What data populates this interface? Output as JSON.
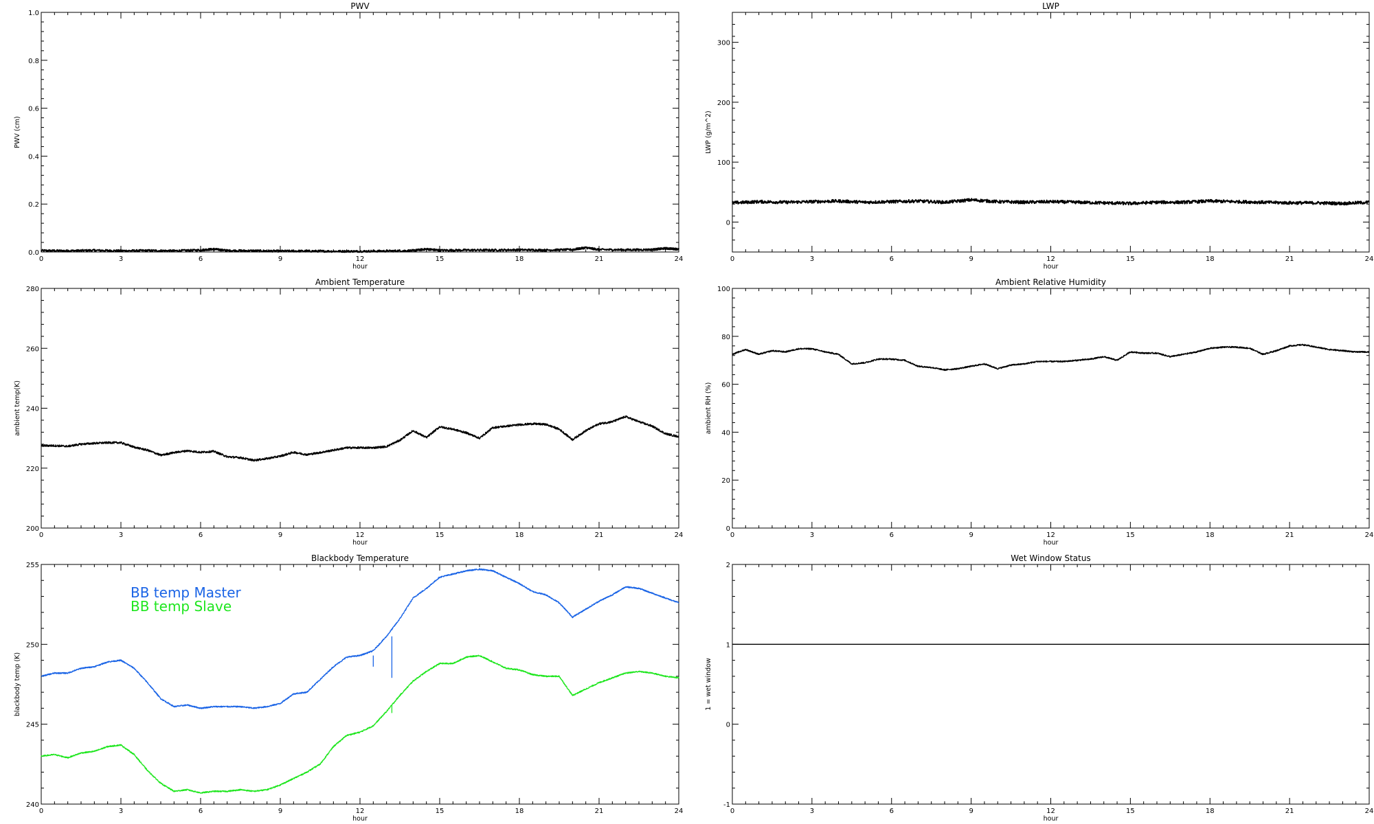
{
  "chart_data": [
    {
      "type": "line",
      "title": "PWV",
      "xlabel": "hour",
      "ylabel": "PWV (cm)",
      "xlim": [
        0,
        24
      ],
      "ylim": [
        0,
        1.0
      ],
      "x_ticks": [
        0,
        3,
        6,
        9,
        12,
        15,
        18,
        21,
        24
      ],
      "y_ticks": [
        0.0,
        0.2,
        0.4,
        0.6,
        0.8,
        1.0
      ],
      "y_tick_labels": [
        "0.0",
        "0.2",
        "0.4",
        "0.6",
        "0.8",
        "1.0"
      ],
      "series": [
        {
          "color": "#000000",
          "noise": 0.004,
          "x": [
            0,
            1,
            2,
            3,
            4,
            5,
            6,
            6.5,
            7,
            8,
            9,
            10,
            11,
            12,
            13,
            14,
            14.5,
            15,
            16,
            17,
            18,
            19,
            20,
            20.5,
            21,
            22,
            23,
            23.5,
            24
          ],
          "y": [
            0.006,
            0.005,
            0.007,
            0.005,
            0.006,
            0.005,
            0.008,
            0.012,
            0.006,
            0.005,
            0.004,
            0.004,
            0.003,
            0.003,
            0.004,
            0.006,
            0.012,
            0.007,
            0.008,
            0.008,
            0.009,
            0.008,
            0.01,
            0.018,
            0.01,
            0.009,
            0.01,
            0.015,
            0.012
          ]
        }
      ]
    },
    {
      "type": "line",
      "title": "LWP",
      "xlabel": "hour",
      "ylabel": "LWP (g/m^2)",
      "xlim": [
        0,
        24
      ],
      "ylim": [
        -50,
        350
      ],
      "x_ticks": [
        0,
        3,
        6,
        9,
        12,
        15,
        18,
        21,
        24
      ],
      "y_ticks": [
        0,
        100,
        200,
        300
      ],
      "y_tick_labels": [
        "0",
        "100",
        "200",
        "300"
      ],
      "series": [
        {
          "color": "#000000",
          "noise": 2.5,
          "x": [
            0,
            1,
            2,
            3,
            4,
            5,
            6,
            7,
            8,
            9,
            10,
            11,
            12,
            13,
            14,
            15,
            16,
            17,
            18,
            19,
            20,
            21,
            22,
            23,
            24
          ],
          "y": [
            32,
            34,
            33,
            34,
            35,
            33,
            34,
            35,
            33,
            37,
            34,
            33,
            34,
            33,
            32,
            31,
            33,
            33,
            35,
            34,
            33,
            32,
            32,
            31,
            33
          ]
        }
      ]
    },
    {
      "type": "line",
      "title": "Ambient Temperature",
      "xlabel": "hour",
      "ylabel": "ambient temp(K)",
      "xlim": [
        0,
        24
      ],
      "ylim": [
        200,
        280
      ],
      "x_ticks": [
        0,
        3,
        6,
        9,
        12,
        15,
        18,
        21,
        24
      ],
      "y_ticks": [
        200,
        220,
        240,
        260,
        280
      ],
      "y_tick_labels": [
        "200",
        "220",
        "240",
        "260",
        "280"
      ],
      "series": [
        {
          "color": "#000000",
          "noise": 0.35,
          "x": [
            0,
            0.5,
            1,
            1.5,
            2,
            2.5,
            3,
            3.5,
            4,
            4.5,
            5,
            5.5,
            6,
            6.5,
            7,
            7.5,
            8,
            8.5,
            9,
            9.5,
            10,
            10.5,
            11,
            11.5,
            12,
            12.5,
            13,
            13.5,
            14,
            14.5,
            15,
            15.5,
            16,
            16.5,
            17,
            17.5,
            18,
            18.5,
            19,
            19.5,
            20,
            20.5,
            21,
            21.5,
            22,
            22.5,
            23,
            23.5,
            24
          ],
          "y": [
            227.5,
            227.5,
            227.3,
            228,
            228.3,
            228.5,
            228.5,
            227,
            226,
            224.3,
            225.2,
            225.8,
            225.3,
            225.6,
            223.8,
            223.5,
            222.6,
            223.2,
            224,
            225.3,
            224.5,
            225.2,
            226,
            226.8,
            226.8,
            226.8,
            227.2,
            229.3,
            232.5,
            230.2,
            233.8,
            233,
            231.8,
            230,
            233.5,
            234,
            234.5,
            234.8,
            234.6,
            233,
            229.5,
            232.5,
            234.8,
            235.5,
            237.2,
            235.5,
            234,
            231.5,
            230.5
          ]
        }
      ]
    },
    {
      "type": "line",
      "title": "Ambient Relative Humidity",
      "xlabel": "hour",
      "ylabel": "ambient RH (%)",
      "xlim": [
        0,
        24
      ],
      "ylim": [
        0,
        100
      ],
      "x_ticks": [
        0,
        3,
        6,
        9,
        12,
        15,
        18,
        21,
        24
      ],
      "y_ticks": [
        0,
        20,
        40,
        60,
        80,
        100
      ],
      "y_tick_labels": [
        "0",
        "20",
        "40",
        "60",
        "80",
        "100"
      ],
      "series": [
        {
          "color": "#000000",
          "noise": 0.3,
          "x": [
            0,
            0.5,
            1,
            1.5,
            2,
            2.5,
            3,
            3.5,
            4,
            4.5,
            5,
            5.5,
            6,
            6.5,
            7,
            7.5,
            8,
            8.5,
            9,
            9.5,
            10,
            10.5,
            11,
            11.5,
            12,
            12.5,
            13,
            13.5,
            14,
            14.5,
            15,
            15.5,
            16,
            16.5,
            17,
            17.5,
            18,
            18.5,
            19,
            19.5,
            20,
            20.5,
            21,
            21.5,
            22,
            22.5,
            23,
            23.5,
            24
          ],
          "y": [
            72.5,
            74.5,
            72.5,
            74,
            73.5,
            74.8,
            74.8,
            73.5,
            72.5,
            68.5,
            69,
            70.5,
            70.5,
            70,
            67.5,
            67,
            66,
            66.5,
            67.5,
            68.5,
            66.5,
            68,
            68.5,
            69.5,
            69.5,
            69.5,
            70,
            70.5,
            71.5,
            70,
            73.5,
            73,
            73,
            71.5,
            72.5,
            73.5,
            75,
            75.5,
            75.5,
            75,
            72.5,
            74,
            76,
            76.5,
            75.5,
            74.5,
            74,
            73.5,
            73.5
          ]
        }
      ]
    },
    {
      "type": "line",
      "title": "Blackbody Temperature",
      "xlabel": "hour",
      "ylabel": "blackbody temp (K)",
      "xlim": [
        0,
        24
      ],
      "ylim": [
        240,
        255
      ],
      "x_ticks": [
        0,
        3,
        6,
        9,
        12,
        15,
        18,
        21,
        24
      ],
      "y_ticks": [
        240,
        245,
        250,
        255
      ],
      "y_tick_labels": [
        "240",
        "245",
        "250",
        "255"
      ],
      "series": [
        {
          "name": "BB temp Master",
          "color": "#1a64e6",
          "noise": 0.04,
          "x": [
            0,
            0.5,
            1,
            1.5,
            2,
            2.5,
            3,
            3.5,
            4,
            4.5,
            5,
            5.5,
            6,
            6.5,
            7,
            7.5,
            8,
            8.5,
            9,
            9.5,
            10,
            10.5,
            11,
            11.5,
            12,
            12.5,
            13,
            13.5,
            14,
            14.5,
            15,
            15.5,
            16,
            16.5,
            17,
            17.5,
            18,
            18.5,
            19,
            19.5,
            20,
            20.5,
            21,
            21.5,
            22,
            22.5,
            23,
            23.5,
            24
          ],
          "y": [
            248.0,
            248.2,
            248.2,
            248.5,
            248.6,
            248.9,
            249.0,
            248.5,
            247.6,
            246.6,
            246.1,
            246.2,
            246.0,
            246.1,
            246.1,
            246.1,
            246.0,
            246.1,
            246.3,
            246.9,
            247.0,
            247.8,
            248.6,
            249.2,
            249.3,
            249.6,
            250.5,
            251.6,
            252.9,
            253.5,
            254.2,
            254.4,
            254.6,
            254.7,
            254.6,
            254.2,
            253.8,
            253.3,
            253.1,
            252.6,
            251.7,
            252.2,
            252.7,
            253.1,
            253.6,
            253.5,
            253.2,
            252.9,
            252.6
          ]
        },
        {
          "name": "BB temp Slave",
          "color": "#1ee61e",
          "noise": 0.04,
          "x": [
            0,
            0.5,
            1,
            1.5,
            2,
            2.5,
            3,
            3.5,
            4,
            4.5,
            5,
            5.5,
            6,
            6.5,
            7,
            7.5,
            8,
            8.5,
            9,
            9.5,
            10,
            10.5,
            11,
            11.5,
            12,
            12.5,
            13,
            13.5,
            14,
            14.5,
            15,
            15.5,
            16,
            16.5,
            17,
            17.5,
            18,
            18.5,
            19,
            19.5,
            20,
            20.5,
            21,
            21.5,
            22,
            22.5,
            23,
            23.5,
            24
          ],
          "y": [
            243.0,
            243.1,
            242.9,
            243.2,
            243.3,
            243.6,
            243.7,
            243.1,
            242.1,
            241.3,
            240.8,
            240.9,
            240.7,
            240.8,
            240.8,
            240.9,
            240.8,
            240.9,
            241.2,
            241.6,
            242.0,
            242.5,
            243.6,
            244.3,
            244.5,
            244.9,
            245.8,
            246.8,
            247.7,
            248.3,
            248.8,
            248.8,
            249.2,
            249.3,
            248.9,
            248.5,
            248.4,
            248.1,
            248.0,
            248.0,
            246.8,
            247.2,
            247.6,
            247.9,
            248.2,
            248.3,
            248.2,
            248.0,
            247.9
          ]
        }
      ]
    },
    {
      "type": "line",
      "title": "Wet Window Status",
      "xlabel": "hour",
      "ylabel": "1 = wet window",
      "xlim": [
        0,
        24
      ],
      "ylim": [
        -1,
        2
      ],
      "x_ticks": [
        0,
        3,
        6,
        9,
        12,
        15,
        18,
        21,
        24
      ],
      "y_ticks": [
        -1,
        0,
        1,
        2
      ],
      "y_tick_labels": [
        "-1",
        "0",
        "1",
        "2"
      ],
      "series": [
        {
          "color": "#000000",
          "noise": 0,
          "x": [
            0,
            24
          ],
          "y": [
            1,
            1
          ]
        }
      ]
    }
  ],
  "legend": {
    "items": [
      "BB temp Master",
      "BB temp Slave"
    ],
    "colors": [
      "#1a64e6",
      "#1ee61e"
    ]
  },
  "spikes": [
    {
      "series": "BB temp Master",
      "x": 12.5,
      "y0": 249.3,
      "y1": 248.6
    },
    {
      "series": "BB temp Master",
      "x": 13.2,
      "y0": 250.5,
      "y1": 247.9
    },
    {
      "series": "BB temp Slave",
      "x": 13.2,
      "y0": 245.7,
      "y1": 246.2
    }
  ]
}
